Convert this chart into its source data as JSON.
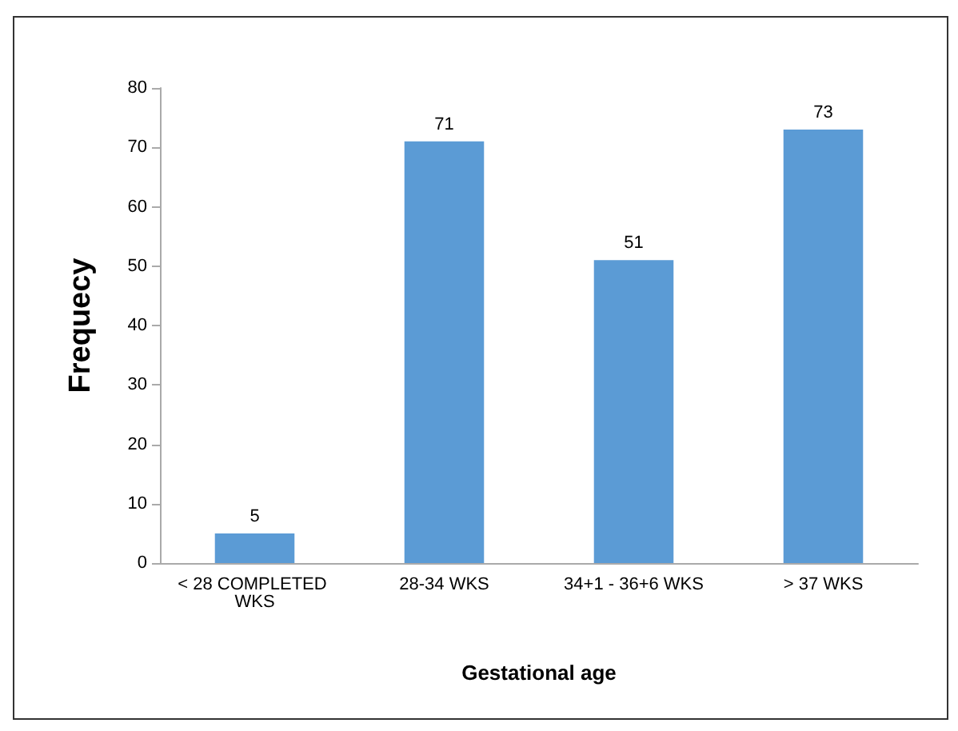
{
  "chart_data": {
    "type": "bar",
    "xlabel": "Gestational age",
    "ylabel": "Frequecy",
    "categories": [
      "< 28 COMPLETED WKS",
      "28-34 WKS",
      "34+1 - 36+6 WKS",
      "> 37 WKS"
    ],
    "values": [
      5,
      71,
      51,
      73
    ],
    "color": "#5b9bd5",
    "ylim": [
      0,
      80
    ],
    "yticks": [
      0,
      10,
      20,
      30,
      40,
      50,
      60,
      70,
      80
    ],
    "grid": false,
    "data_labels": true
  }
}
